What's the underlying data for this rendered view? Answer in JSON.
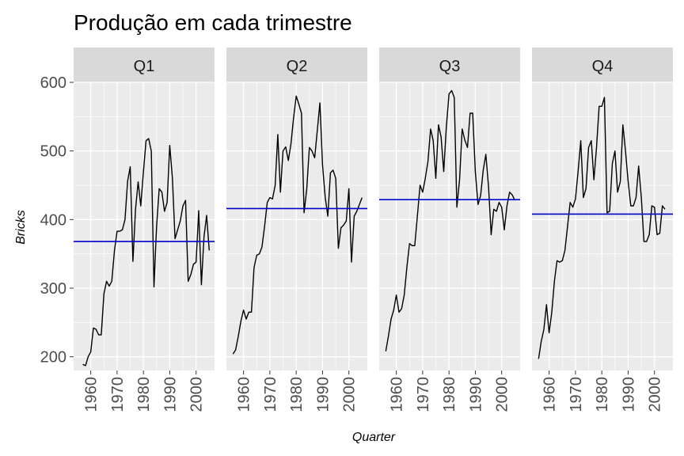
{
  "chart_data": {
    "type": "line",
    "title": "Produção em cada trimestre",
    "xlabel": "Quarter",
    "ylabel": "Bricks",
    "xlim": [
      1953.5,
      2007
    ],
    "ylim": [
      180,
      600
    ],
    "yticks": [
      200,
      300,
      400,
      500,
      600
    ],
    "xticks": [
      1960,
      1970,
      1980,
      1990,
      2000
    ],
    "grid": true,
    "legend": "none",
    "colors": {
      "series": "#000000",
      "mean_line": "#0000cc",
      "panel_bg": "#ebebeb",
      "strip_bg": "#d9d9d9",
      "grid": "#ffffff"
    },
    "panels": [
      {
        "label": "Q1",
        "mean": 368,
        "x": [
          1957,
          1958,
          1959,
          1960,
          1961,
          1962,
          1963,
          1964,
          1965,
          1966,
          1967,
          1968,
          1969,
          1970,
          1971,
          1972,
          1973,
          1974,
          1975,
          1976,
          1977,
          1978,
          1979,
          1980,
          1981,
          1982,
          1983,
          1984,
          1985,
          1986,
          1987,
          1988,
          1989,
          1990,
          1991,
          1992,
          1993,
          1994,
          1995,
          1996,
          1997,
          1998,
          1999,
          2000,
          2001,
          2002,
          2003,
          2004,
          2005
        ],
        "values": [
          189,
          187,
          200,
          207,
          242,
          240,
          232,
          232,
          292,
          310,
          303,
          310,
          355,
          383,
          383,
          385,
          400,
          456,
          477,
          339,
          415,
          455,
          420,
          470,
          515,
          518,
          500,
          302,
          390,
          445,
          440,
          412,
          425,
          508,
          460,
          372,
          385,
          398,
          420,
          428,
          310,
          320,
          335,
          338,
          413,
          305,
          375,
          406,
          355
        ]
      },
      {
        "label": "Q2",
        "mean": 416,
        "x": [
          1956,
          1957,
          1958,
          1959,
          1960,
          1961,
          1962,
          1963,
          1964,
          1965,
          1966,
          1967,
          1968,
          1969,
          1970,
          1971,
          1972,
          1973,
          1974,
          1975,
          1976,
          1977,
          1978,
          1979,
          1980,
          1981,
          1982,
          1983,
          1984,
          1985,
          1986,
          1987,
          1988,
          1989,
          1990,
          1991,
          1992,
          1993,
          1994,
          1995,
          1996,
          1997,
          1998,
          1999,
          2000,
          2001,
          2002,
          2003,
          2004,
          2005
        ],
        "values": [
          204,
          210,
          230,
          252,
          268,
          255,
          265,
          265,
          330,
          348,
          350,
          360,
          390,
          425,
          432,
          430,
          450,
          524,
          440,
          500,
          506,
          486,
          510,
          548,
          580,
          568,
          555,
          410,
          445,
          505,
          500,
          490,
          530,
          570,
          480,
          432,
          405,
          468,
          472,
          460,
          358,
          388,
          392,
          398,
          445,
          338,
          405,
          412,
          422,
          432
        ]
      },
      {
        "label": "Q3",
        "mean": 429,
        "x": [
          1956,
          1957,
          1958,
          1959,
          1960,
          1961,
          1962,
          1963,
          1964,
          1965,
          1966,
          1967,
          1968,
          1969,
          1970,
          1971,
          1972,
          1973,
          1974,
          1975,
          1976,
          1977,
          1978,
          1979,
          1980,
          1981,
          1982,
          1983,
          1984,
          1985,
          1986,
          1987,
          1988,
          1989,
          1990,
          1991,
          1992,
          1993,
          1994,
          1995,
          1996,
          1997,
          1998,
          1999,
          2000,
          2001,
          2002,
          2003,
          2004,
          2005
        ],
        "values": [
          208,
          230,
          255,
          268,
          290,
          265,
          270,
          290,
          330,
          365,
          362,
          362,
          405,
          450,
          440,
          460,
          485,
          532,
          515,
          460,
          538,
          520,
          470,
          535,
          583,
          588,
          578,
          418,
          458,
          532,
          516,
          505,
          555,
          555,
          470,
          422,
          435,
          472,
          495,
          448,
          378,
          415,
          412,
          425,
          418,
          385,
          420,
          440,
          436,
          428
        ]
      },
      {
        "label": "Q4",
        "mean": 408,
        "x": [
          1956,
          1957,
          1958,
          1959,
          1960,
          1961,
          1962,
          1963,
          1964,
          1965,
          1966,
          1967,
          1968,
          1969,
          1970,
          1971,
          1972,
          1973,
          1974,
          1975,
          1976,
          1977,
          1978,
          1979,
          1980,
          1981,
          1982,
          1983,
          1984,
          1985,
          1986,
          1987,
          1988,
          1989,
          1990,
          1991,
          1992,
          1993,
          1994,
          1995,
          1996,
          1997,
          1998,
          1999,
          2000,
          2001,
          2002,
          2003,
          2004
        ],
        "values": [
          197,
          222,
          240,
          276,
          235,
          265,
          310,
          340,
          338,
          340,
          355,
          390,
          425,
          418,
          430,
          470,
          515,
          432,
          445,
          505,
          515,
          458,
          505,
          565,
          565,
          578,
          410,
          412,
          482,
          500,
          440,
          455,
          538,
          500,
          456,
          420,
          420,
          432,
          478,
          432,
          368,
          368,
          378,
          420,
          418,
          378,
          380,
          420,
          415
        ]
      }
    ]
  }
}
